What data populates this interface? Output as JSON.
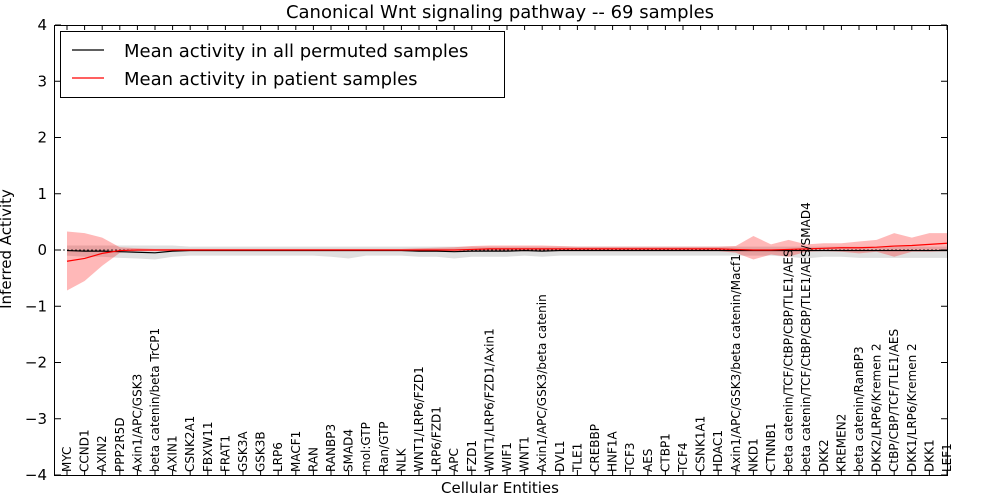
{
  "chart_data": {
    "type": "line",
    "title": "Canonical Wnt signaling pathway -- 69 samples",
    "xlabel": "Cellular Entities",
    "ylabel": "Inferred Activity",
    "ylim": [
      -4,
      4
    ],
    "yticks": [
      -4,
      -3,
      -2,
      -1,
      0,
      1,
      2,
      3,
      4
    ],
    "ytick_labels": [
      "−4",
      "−3",
      "−2",
      "−1",
      "0",
      "1",
      "2",
      "3",
      "4"
    ],
    "grid": false,
    "legend_position": "top-left",
    "categories": [
      "MYC",
      "CCND1",
      "AXIN2",
      "PPP2R5D",
      "Axin1/APC/GSK3",
      "beta catenin/beta TrCP1",
      "AXIN1",
      "CSNK2A1",
      "FBXW11",
      "FRAT1",
      "GSK3A",
      "GSK3B",
      "LRP6",
      "MACF1",
      "RAN",
      "RANBP3",
      "SMAD4",
      "mol:GTP",
      "Ran/GTP",
      "NLK",
      "WNT1/LRP6/FZD1",
      "LRP6/FZD1",
      "APC",
      "FZD1",
      "WNT1/LRP6/FZD1/Axin1",
      "WIF1",
      "WNT1",
      "Axin1/APC/GSK3/beta catenin",
      "DVL1",
      "TLE1",
      "CREBBP",
      "HNF1A",
      "TCF3",
      "AES",
      "CTBP1",
      "TCF4",
      "CSNK1A1",
      "HDAC1",
      "Axin1/APC/GSK3/beta catenin/Macf1",
      "NKD1",
      "CTNNB1",
      "beta catenin/TCF/CtBP/CBP/TLE1/AES",
      "beta catenin/TCF/CtBP/CBP/TLE1/AES/SMAD4",
      "DKK2",
      "KREMEN2",
      "beta catenin/RanBP3",
      "DKK2/LRP6/Kremen 2",
      "CtBP/CBP/TCF/TLE1/AES",
      "DKK1/LRP6/Kremen 2",
      "DKK1",
      "LEF1"
    ],
    "series": [
      {
        "name": "Mean activity in all permuted samples",
        "color": "#000000",
        "values": [
          -0.01,
          -0.02,
          -0.02,
          -0.03,
          -0.04,
          -0.05,
          -0.02,
          -0.01,
          -0.01,
          -0.01,
          -0.01,
          -0.01,
          -0.01,
          -0.01,
          -0.01,
          -0.01,
          -0.01,
          -0.01,
          -0.01,
          -0.01,
          -0.02,
          -0.02,
          -0.03,
          -0.02,
          -0.02,
          -0.02,
          -0.01,
          -0.02,
          -0.01,
          -0.01,
          -0.01,
          -0.01,
          -0.01,
          -0.01,
          -0.01,
          -0.01,
          -0.01,
          -0.01,
          -0.01,
          -0.01,
          -0.01,
          -0.01,
          -0.01,
          -0.01,
          -0.01,
          -0.01,
          -0.01,
          -0.01,
          -0.01,
          -0.01,
          -0.01
        ],
        "band_low": [
          -0.1,
          -0.12,
          -0.12,
          -0.14,
          -0.15,
          -0.17,
          -0.12,
          -0.1,
          -0.1,
          -0.1,
          -0.1,
          -0.1,
          -0.1,
          -0.1,
          -0.1,
          -0.12,
          -0.15,
          -0.1,
          -0.1,
          -0.1,
          -0.12,
          -0.12,
          -0.15,
          -0.12,
          -0.12,
          -0.12,
          -0.1,
          -0.12,
          -0.1,
          -0.1,
          -0.1,
          -0.1,
          -0.1,
          -0.1,
          -0.1,
          -0.1,
          -0.1,
          -0.1,
          -0.1,
          -0.1,
          -0.1,
          -0.12,
          -0.15,
          -0.12,
          -0.12,
          -0.14,
          -0.14,
          -0.14,
          -0.14,
          -0.14,
          -0.14
        ],
        "band_high": [
          0.08,
          0.08,
          0.08,
          0.08,
          0.08,
          0.08,
          0.08,
          0.06,
          0.06,
          0.06,
          0.06,
          0.06,
          0.06,
          0.06,
          0.06,
          0.06,
          0.06,
          0.06,
          0.06,
          0.06,
          0.06,
          0.06,
          0.06,
          0.06,
          0.06,
          0.06,
          0.06,
          0.06,
          0.06,
          0.06,
          0.06,
          0.06,
          0.06,
          0.06,
          0.06,
          0.06,
          0.06,
          0.06,
          0.06,
          0.06,
          0.06,
          0.06,
          0.06,
          0.06,
          0.06,
          0.06,
          0.06,
          0.06,
          0.06,
          0.06,
          0.06
        ]
      },
      {
        "name": "Mean activity in patient samples",
        "color": "#ff0000",
        "values": [
          -0.2,
          -0.15,
          -0.06,
          -0.01,
          0.0,
          0.0,
          0.0,
          0.0,
          0.0,
          0.0,
          0.0,
          0.0,
          0.0,
          0.0,
          0.0,
          0.0,
          0.0,
          0.0,
          0.0,
          0.0,
          0.0,
          0.0,
          0.0,
          0.01,
          0.02,
          0.02,
          0.02,
          0.02,
          0.02,
          0.02,
          0.02,
          0.02,
          0.02,
          0.02,
          0.02,
          0.02,
          0.02,
          0.02,
          0.01,
          0.0,
          0.0,
          0.01,
          0.02,
          0.03,
          0.04,
          0.04,
          0.05,
          0.07,
          0.08,
          0.1,
          0.12
        ],
        "band_low": [
          -0.72,
          -0.55,
          -0.28,
          -0.05,
          -0.02,
          -0.02,
          -0.02,
          -0.02,
          -0.02,
          -0.02,
          -0.02,
          -0.02,
          -0.02,
          -0.02,
          -0.02,
          -0.02,
          -0.02,
          -0.02,
          -0.02,
          -0.02,
          -0.03,
          -0.03,
          -0.03,
          -0.03,
          -0.02,
          -0.02,
          -0.02,
          -0.02,
          -0.02,
          -0.02,
          -0.02,
          -0.02,
          -0.02,
          -0.02,
          -0.02,
          -0.02,
          -0.02,
          -0.02,
          -0.05,
          -0.17,
          -0.08,
          -0.12,
          -0.03,
          -0.02,
          -0.03,
          -0.06,
          -0.03,
          -0.12,
          -0.03,
          -0.03,
          -0.02
        ],
        "band_high": [
          0.33,
          0.3,
          0.22,
          0.05,
          0.03,
          0.02,
          0.02,
          0.02,
          0.02,
          0.02,
          0.02,
          0.02,
          0.02,
          0.02,
          0.02,
          0.02,
          0.02,
          0.02,
          0.02,
          0.02,
          0.03,
          0.04,
          0.05,
          0.07,
          0.08,
          0.08,
          0.08,
          0.08,
          0.07,
          0.06,
          0.06,
          0.06,
          0.06,
          0.06,
          0.06,
          0.06,
          0.06,
          0.06,
          0.07,
          0.25,
          0.1,
          0.18,
          0.1,
          0.12,
          0.12,
          0.15,
          0.18,
          0.3,
          0.22,
          0.3,
          0.3
        ]
      }
    ],
    "reference_line": 0,
    "legend": [
      {
        "label": "Mean activity in all permuted samples",
        "color": "#000000"
      },
      {
        "label": "Mean activity in patient samples",
        "color": "#ff0000"
      }
    ]
  }
}
